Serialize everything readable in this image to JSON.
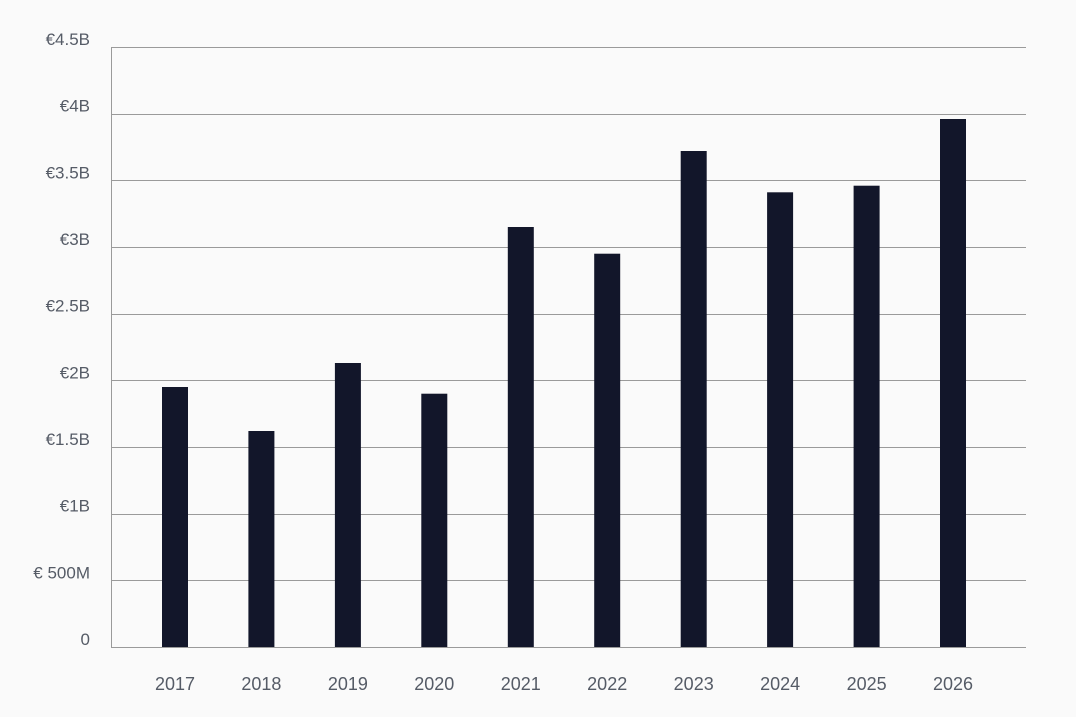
{
  "chart_data": {
    "type": "bar",
    "title": "",
    "xlabel": "",
    "ylabel": "",
    "categories": [
      "2017",
      "2018",
      "2019",
      "2020",
      "2021",
      "2022",
      "2023",
      "2024",
      "2025",
      "2026"
    ],
    "series": [
      {
        "values": [
          1.95,
          1.62,
          2.13,
          1.9,
          3.15,
          2.95,
          3.72,
          3.41,
          3.46,
          3.96
        ]
      }
    ],
    "value_unit": "billion EUR",
    "ylim": [
      0,
      4.5
    ],
    "y_ticks": [
      {
        "value": 0,
        "label": "0"
      },
      {
        "value": 0.5,
        "label": "€ 500M"
      },
      {
        "value": 1.0,
        "label": "€1B"
      },
      {
        "value": 1.5,
        "label": "€1.5B"
      },
      {
        "value": 2.0,
        "label": "€2B"
      },
      {
        "value": 2.5,
        "label": "€2.5B"
      },
      {
        "value": 3.0,
        "label": "€3B"
      },
      {
        "value": 3.5,
        "label": "€3.5B"
      },
      {
        "value": 4.0,
        "label": "€4B"
      },
      {
        "value": 4.5,
        "label": "€4.5B"
      }
    ],
    "grid": true,
    "legend": "none",
    "colors": {
      "bar": "#12162a",
      "grid": "#9a9a9a",
      "text": "#555b66",
      "background": "#fafafa"
    }
  }
}
